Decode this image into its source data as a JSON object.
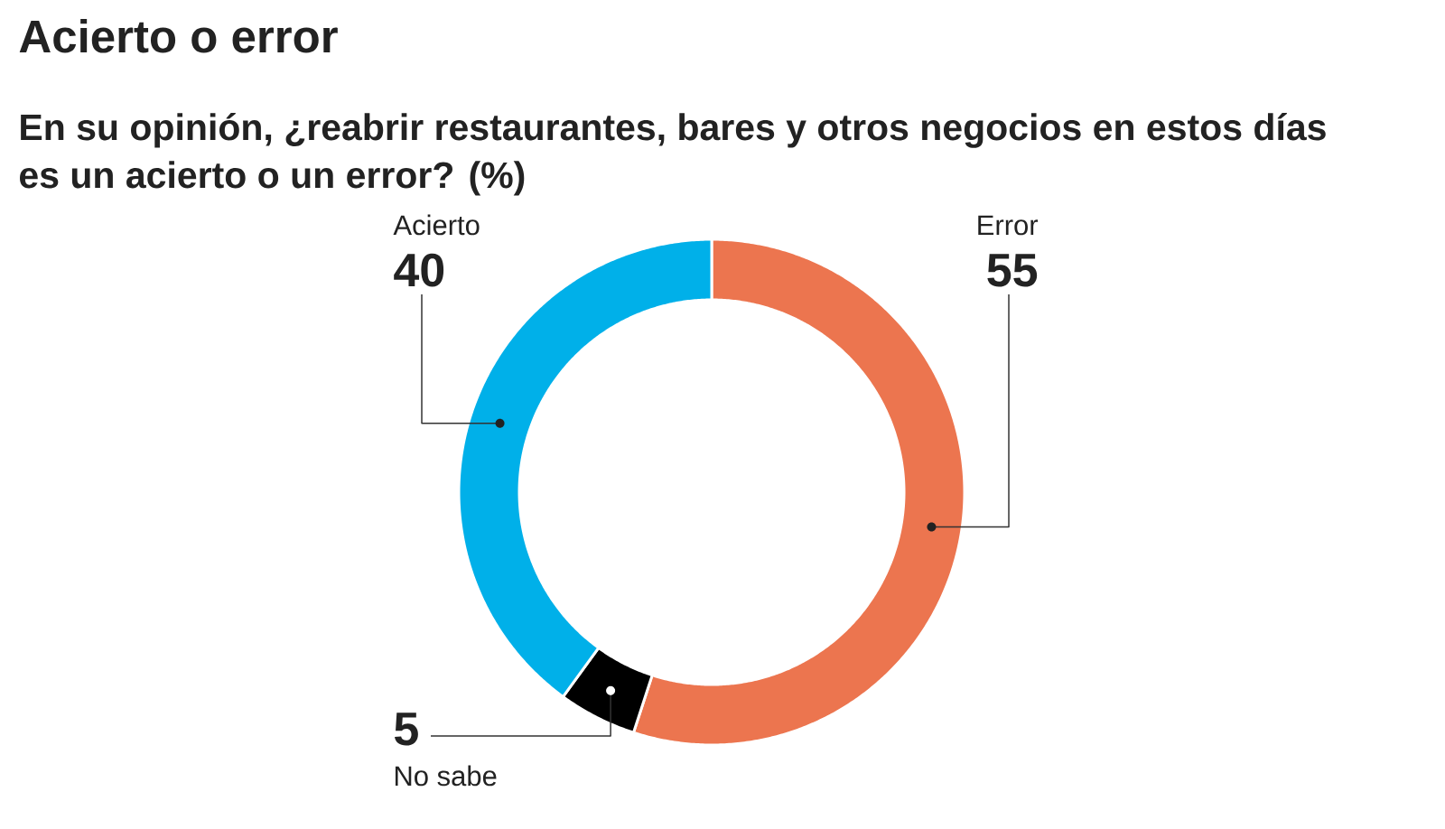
{
  "chart_data": {
    "type": "donut",
    "title": "Acierto o error",
    "subtitle": "En su opinión, ¿reabrir restaurantes, bares y otros negocios en estos días es un acierto o un error? (%)",
    "categories": [
      "Error",
      "No sabe",
      "Acierto"
    ],
    "values": [
      55,
      5,
      40
    ],
    "colors": [
      "#ec754f",
      "#000000",
      "#00b0e9"
    ],
    "data_labels": true
  }
}
